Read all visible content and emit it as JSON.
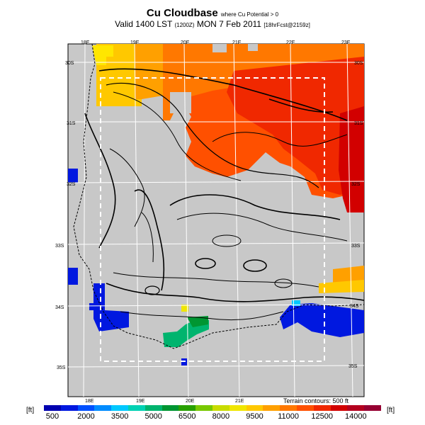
{
  "header": {
    "title": "Cu Cloudbase",
    "title_note": "where Cu Potential > 0",
    "valid_line": "Valid 1400 LST",
    "valid_code": "(1200Z)",
    "valid_date": "MON 7 Feb 2011",
    "valid_forecast": "[18hrFcst@2159z]"
  },
  "map": {
    "lon_labels_top": [
      "18E",
      "19E",
      "20E",
      "21E",
      "22E",
      "23E"
    ],
    "lon_labels_bottom": [
      "18E",
      "19E",
      "20E",
      "21E"
    ],
    "lat_labels_left": [
      "30S",
      "31S",
      "32S",
      "33S",
      "34S",
      "35S"
    ],
    "lat_labels_right": [
      "30S",
      "31S",
      "32S",
      "33S",
      "34S",
      "35S"
    ],
    "terrain_note": "Terrain contours: 500 ft"
  },
  "colorbar": {
    "unit_left": "[ft]",
    "unit_right": "[ft]",
    "tick_labels": [
      "500",
      "2000",
      "3500",
      "5000",
      "6500",
      "8000",
      "9500",
      "11000",
      "12500",
      "14000"
    ],
    "colors": [
      "#0000b0",
      "#0018e0",
      "#0050ff",
      "#008cff",
      "#00c8ff",
      "#00d2b4",
      "#00b46e",
      "#009632",
      "#28a000",
      "#78c800",
      "#c8dc00",
      "#f0e600",
      "#ffc800",
      "#ffa000",
      "#ff7800",
      "#ff5000",
      "#f02800",
      "#d20000",
      "#b4001e",
      "#960032"
    ]
  }
}
